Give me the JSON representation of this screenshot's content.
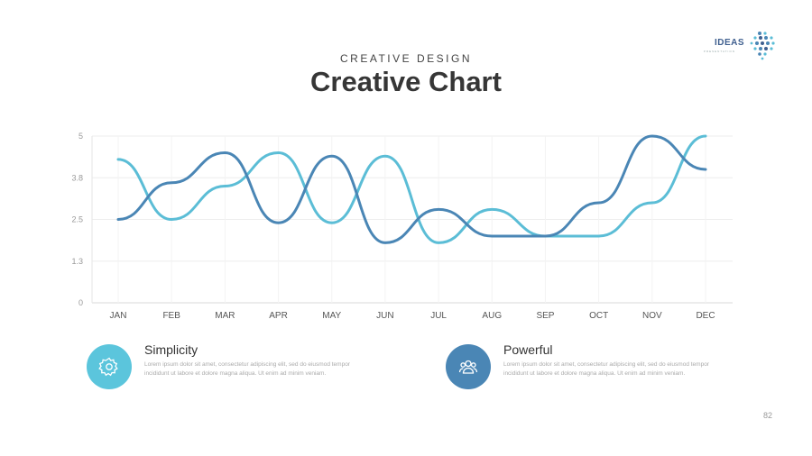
{
  "header": {
    "subtitle": "CREATIVE DESIGN",
    "title": "Creative Chart"
  },
  "logo": {
    "word": "IDEAS",
    "tagline": "PRESENTATION"
  },
  "chart_data": {
    "type": "line",
    "categories": [
      "JAN",
      "FEB",
      "MAR",
      "APR",
      "MAY",
      "JUN",
      "JUL",
      "AUG",
      "SEP",
      "OCT",
      "NOV",
      "DEC"
    ],
    "y_ticks": [
      "0",
      "1.3",
      "2.5",
      "3.8",
      "5"
    ],
    "ylim": [
      0,
      5
    ],
    "grid": true,
    "series": [
      {
        "color": "#5bbdd6",
        "values": [
          4.3,
          2.5,
          3.5,
          4.5,
          2.4,
          4.4,
          1.8,
          2.8,
          2.0,
          2.0,
          3.0,
          5.0
        ]
      },
      {
        "color": "#4a86b5",
        "values": [
          2.5,
          3.6,
          4.5,
          2.4,
          4.4,
          1.8,
          2.8,
          2.0,
          2.0,
          3.0,
          5.0,
          4.0
        ]
      }
    ]
  },
  "features": [
    {
      "title": "Simplicity",
      "body": "Lorem ipsum dolor sit amet, consectetur adipiscing elit, sed do eiusmod tempor incididunt ut labore et dolore magna aliqua. Ut enim ad minim veniam.",
      "icon": "gear-icon",
      "color": "#5bc5dc"
    },
    {
      "title": "Powerful",
      "body": "Lorem ipsum dolor sit amet, consectetur adipiscing elit, sed do eiusmod tempor incididunt ut labore et dolore magna aliqua. Ut enim ad minim veniam.",
      "icon": "users-icon",
      "color": "#4a86b5"
    }
  ],
  "page_number": "82"
}
